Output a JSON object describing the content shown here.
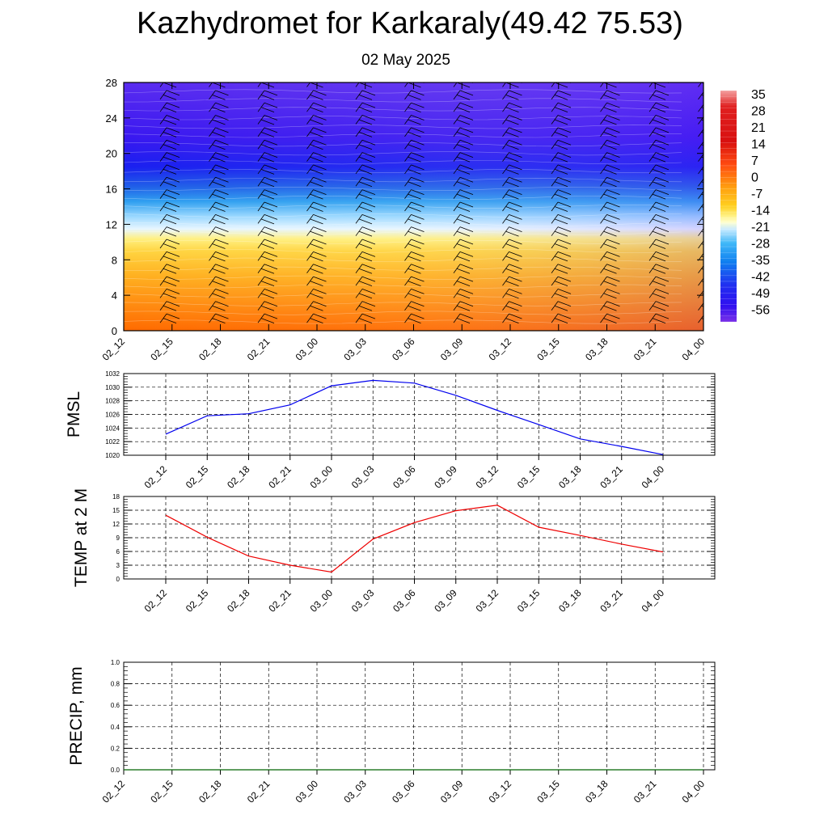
{
  "title": "Kazhydromet for Karkaraly(49.42 75.53)",
  "subtitle": "02 May 2025",
  "time_labels": [
    "02_12",
    "02_15",
    "02_18",
    "02_21",
    "03_00",
    "03_03",
    "03_06",
    "03_09",
    "03_12",
    "03_15",
    "03_18",
    "03_21",
    "04_00"
  ],
  "colors": {
    "pmsl_line": "#0000ee",
    "temp_line": "#ee0000",
    "precip_line": "#006400",
    "grid": "#000000"
  },
  "chart_data": [
    {
      "type": "heatmap",
      "title": "",
      "xlabel": "",
      "ylabel": "",
      "x": [
        "02_12",
        "02_15",
        "02_18",
        "02_21",
        "03_00",
        "03_03",
        "03_06",
        "03_09",
        "03_12",
        "03_15",
        "03_18",
        "03_21",
        "04_00"
      ],
      "y_ticks": [
        0,
        4,
        8,
        12,
        16,
        20,
        24,
        28
      ],
      "ylim": [
        0,
        28
      ],
      "colorbar_labels": [
        "35",
        "28",
        "21",
        "14",
        "7",
        "0",
        "-7",
        "-14",
        "-21",
        "-28",
        "-35",
        "-42",
        "-49",
        "-56"
      ],
      "overlay": "wind barbs"
    },
    {
      "type": "line",
      "ylabel": "PMSL",
      "x": [
        "02_12",
        "02_15",
        "02_18",
        "02_21",
        "03_00",
        "03_03",
        "03_06",
        "03_09",
        "03_12",
        "03_15",
        "03_18",
        "03_21",
        "04_00"
      ],
      "y": [
        1023.1,
        1025.8,
        1026.1,
        1027.4,
        1030.2,
        1031.0,
        1030.6,
        1028.8,
        1026.6,
        1024.5,
        1022.4,
        1021.3,
        1020.1
      ],
      "ylim": [
        1020,
        1032
      ],
      "y_ticks": [
        1020,
        1022,
        1024,
        1026,
        1028,
        1030,
        1032
      ],
      "grid": true
    },
    {
      "type": "line",
      "ylabel": "TEMP at 2 M",
      "x": [
        "02_12",
        "02_15",
        "02_18",
        "02_21",
        "03_00",
        "03_03",
        "03_06",
        "03_09",
        "03_12",
        "03_15",
        "03_18",
        "03_21",
        "04_00"
      ],
      "y": [
        13.9,
        9.1,
        5.0,
        3.0,
        1.5,
        8.7,
        12.3,
        14.9,
        16.1,
        11.3,
        9.5,
        7.6,
        5.9
      ],
      "ylim": [
        0,
        18
      ],
      "y_ticks": [
        0,
        3,
        6,
        9,
        12,
        15,
        18
      ],
      "grid": true
    },
    {
      "type": "line",
      "ylabel": "PRECIP, mm",
      "x": [
        "02_12",
        "02_15",
        "02_18",
        "02_21",
        "03_00",
        "03_03",
        "03_06",
        "03_09",
        "03_12",
        "03_15",
        "03_18",
        "03_21",
        "04_00"
      ],
      "y": [
        0,
        0,
        0,
        0,
        0,
        0,
        0,
        0,
        0,
        0,
        0,
        0,
        0
      ],
      "ylim": [
        0,
        1.0
      ],
      "y_ticks": [
        "0.0",
        "0.2",
        "0.4",
        "0.6",
        "0.8",
        "1.0"
      ],
      "grid": true
    }
  ]
}
